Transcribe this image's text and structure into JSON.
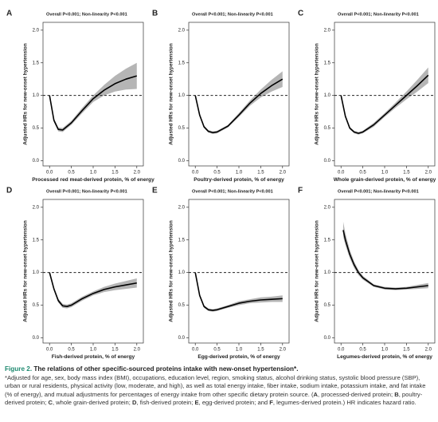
{
  "chart_data": [
    {
      "type": "line",
      "panel": "A",
      "annotation": "Overall P<0.001; Non-linearity P<0.001",
      "ylabel": "Adjusted HRs for new-onset hypertension",
      "xlabel": "Processed red meat-derived protein, % of energy",
      "x": [
        0,
        0.1,
        0.2,
        0.3,
        0.5,
        0.75,
        1,
        1.25,
        1.5,
        1.75,
        2
      ],
      "values": [
        1.0,
        0.62,
        0.48,
        0.47,
        0.58,
        0.77,
        0.95,
        1.08,
        1.18,
        1.25,
        1.3
      ],
      "lower": [
        0.99,
        0.59,
        0.45,
        0.44,
        0.55,
        0.73,
        0.9,
        1.0,
        1.06,
        1.09,
        1.1
      ],
      "upper": [
        1.01,
        0.65,
        0.51,
        0.5,
        0.61,
        0.81,
        1.0,
        1.16,
        1.3,
        1.41,
        1.5
      ],
      "xlim": [
        -0.15,
        2.15
      ],
      "ylim": [
        -0.08,
        2.12
      ],
      "xticks": [
        {
          "value": 0,
          "label": "0.0"
        },
        0.5,
        {
          "value": 1,
          "label": "1.0"
        },
        1.5,
        {
          "value": 2,
          "label": "2.0"
        }
      ],
      "yticks": [
        {
          "value": 0,
          "label": "0.0"
        },
        0.5,
        {
          "value": 1,
          "label": "1.0"
        },
        1.5,
        {
          "value": 2,
          "label": "2.0"
        }
      ],
      "reference_line": 1,
      "color": "#000000",
      "band_color": "#b5b5b5"
    },
    {
      "type": "line",
      "panel": "B",
      "annotation": "Overall P<0.001; Non-linearity P<0.001",
      "ylabel": "Adjusted HRs for new-onset hypertension",
      "xlabel": "Poultry-derived protein, % of energy",
      "x": [
        0,
        0.1,
        0.2,
        0.3,
        0.4,
        0.5,
        0.75,
        1,
        1.25,
        1.5,
        1.75,
        2
      ],
      "values": [
        1,
        0.7,
        0.52,
        0.45,
        0.43,
        0.44,
        0.53,
        0.7,
        0.88,
        1.03,
        1.15,
        1.25
      ],
      "lower": [
        0.99,
        0.68,
        0.5,
        0.43,
        0.41,
        0.42,
        0.51,
        0.67,
        0.84,
        0.97,
        1.06,
        1.13
      ],
      "upper": [
        1.01,
        0.72,
        0.54,
        0.47,
        0.45,
        0.46,
        0.55,
        0.73,
        0.92,
        1.09,
        1.24,
        1.37
      ],
      "xlim": [
        -0.15,
        2.15
      ],
      "ylim": [
        -0.08,
        2.12
      ],
      "xticks": [
        {
          "value": 0,
          "label": "0.0"
        },
        0.5,
        {
          "value": 1,
          "label": "1.0"
        },
        1.5,
        {
          "value": 2,
          "label": "2.0"
        }
      ],
      "yticks": [
        {
          "value": 0,
          "label": "0.0"
        },
        0.5,
        {
          "value": 1,
          "label": "1.0"
        },
        1.5,
        {
          "value": 2,
          "label": "2.0"
        }
      ],
      "reference_line": 1,
      "color": "#000000",
      "band_color": "#b5b5b5"
    },
    {
      "type": "line",
      "panel": "C",
      "annotation": "Overall P<0.001; Non-linearity P<0.001",
      "ylabel": "Adjusted HRs for new-onset hypertension",
      "xlabel": "Whole grain-derived protein, % of energy",
      "x": [
        0,
        0.1,
        0.2,
        0.3,
        0.4,
        0.5,
        0.75,
        1,
        1.25,
        1.5,
        1.75,
        2
      ],
      "values": [
        1,
        0.68,
        0.5,
        0.44,
        0.42,
        0.44,
        0.55,
        0.7,
        0.85,
        1.0,
        1.15,
        1.31
      ],
      "lower": [
        0.99,
        0.66,
        0.48,
        0.42,
        0.4,
        0.42,
        0.52,
        0.67,
        0.81,
        0.94,
        1.06,
        1.19
      ],
      "upper": [
        1.01,
        0.7,
        0.52,
        0.46,
        0.44,
        0.46,
        0.58,
        0.73,
        0.89,
        1.06,
        1.24,
        1.43
      ],
      "xlim": [
        -0.15,
        2.15
      ],
      "ylim": [
        -0.08,
        2.12
      ],
      "xticks": [
        {
          "value": 0,
          "label": "0.0"
        },
        0.5,
        {
          "value": 1,
          "label": "1.0"
        },
        1.5,
        {
          "value": 2,
          "label": "2.0"
        }
      ],
      "yticks": [
        {
          "value": 0,
          "label": "0.0"
        },
        0.5,
        {
          "value": 1,
          "label": "1.0"
        },
        1.5,
        {
          "value": 2,
          "label": "2.0"
        }
      ],
      "reference_line": 1,
      "color": "#000000",
      "band_color": "#b5b5b5"
    },
    {
      "type": "line",
      "panel": "D",
      "annotation": "Overall P<0.001; Non-linearity P<0.001",
      "ylabel": "Adjusted HRs for new-onset hypertension",
      "xlabel": "Fish-derived protein, % of energy",
      "x": [
        0,
        0.1,
        0.2,
        0.3,
        0.4,
        0.5,
        0.75,
        1,
        1.25,
        1.5,
        1.75,
        2
      ],
      "values": [
        1,
        0.75,
        0.57,
        0.49,
        0.48,
        0.5,
        0.6,
        0.68,
        0.74,
        0.78,
        0.81,
        0.84
      ],
      "lower": [
        0.99,
        0.73,
        0.54,
        0.46,
        0.45,
        0.47,
        0.57,
        0.65,
        0.7,
        0.73,
        0.75,
        0.77
      ],
      "upper": [
        1.01,
        0.77,
        0.6,
        0.52,
        0.51,
        0.53,
        0.63,
        0.71,
        0.78,
        0.83,
        0.87,
        0.91
      ],
      "xlim": [
        -0.15,
        2.15
      ],
      "ylim": [
        -0.08,
        2.12
      ],
      "xticks": [
        {
          "value": 0,
          "label": "0.0"
        },
        0.5,
        {
          "value": 1,
          "label": "1.0"
        },
        1.5,
        {
          "value": 2,
          "label": "2.0"
        }
      ],
      "yticks": [
        {
          "value": 0,
          "label": "0.0"
        },
        0.5,
        {
          "value": 1,
          "label": "1.0"
        },
        1.5,
        {
          "value": 2,
          "label": "2.0"
        }
      ],
      "reference_line": 1,
      "color": "#000000",
      "band_color": "#b5b5b5"
    },
    {
      "type": "line",
      "panel": "E",
      "annotation": "Overall P<0.001; Non-linearity P<0.001",
      "ylabel": "Adjusted HRs for new-onset hypertension",
      "xlabel": "Egg-derived protein, % of energy",
      "x": [
        0,
        0.1,
        0.2,
        0.3,
        0.4,
        0.5,
        0.75,
        1,
        1.25,
        1.5,
        1.75,
        2
      ],
      "values": [
        1,
        0.65,
        0.48,
        0.43,
        0.42,
        0.43,
        0.48,
        0.53,
        0.56,
        0.58,
        0.59,
        0.6
      ],
      "lower": [
        0.99,
        0.63,
        0.46,
        0.41,
        0.4,
        0.41,
        0.46,
        0.5,
        0.53,
        0.54,
        0.55,
        0.55
      ],
      "upper": [
        1.01,
        0.67,
        0.5,
        0.45,
        0.44,
        0.45,
        0.5,
        0.56,
        0.59,
        0.62,
        0.63,
        0.65
      ],
      "xlim": [
        -0.15,
        2.15
      ],
      "ylim": [
        -0.08,
        2.12
      ],
      "xticks": [
        {
          "value": 0,
          "label": "0.0"
        },
        0.5,
        {
          "value": 1,
          "label": "1.0"
        },
        1.5,
        {
          "value": 2,
          "label": "2.0"
        }
      ],
      "yticks": [
        {
          "value": 0,
          "label": "0.0"
        },
        0.5,
        {
          "value": 1,
          "label": "1.0"
        },
        1.5,
        {
          "value": 2,
          "label": "2.0"
        }
      ],
      "reference_line": 1,
      "color": "#000000",
      "band_color": "#b5b5b5"
    },
    {
      "type": "line",
      "panel": "F",
      "annotation": "Overall P<0.001; Non-linearity P<0.001",
      "ylabel": "Adjusted HRs for new-onset hypertension",
      "xlabel": "Legumes-derived protein, % of energy",
      "x": [
        0.05,
        0.1,
        0.2,
        0.3,
        0.4,
        0.5,
        0.75,
        1,
        1.25,
        1.5,
        1.75,
        2
      ],
      "values": [
        1.65,
        1.5,
        1.28,
        1.12,
        1.0,
        0.92,
        0.8,
        0.76,
        0.75,
        0.76,
        0.78,
        0.8
      ],
      "lower": [
        1.55,
        1.42,
        1.22,
        1.07,
        0.96,
        0.89,
        0.78,
        0.74,
        0.73,
        0.74,
        0.75,
        0.76
      ],
      "upper": [
        1.78,
        1.6,
        1.35,
        1.17,
        1.04,
        0.95,
        0.82,
        0.78,
        0.77,
        0.78,
        0.81,
        0.84
      ],
      "xlim": [
        -0.15,
        2.15
      ],
      "ylim": [
        -0.08,
        2.12
      ],
      "xticks": [
        {
          "value": 0,
          "label": "0.0"
        },
        0.5,
        {
          "value": 1,
          "label": "1.0"
        },
        1.5,
        {
          "value": 2,
          "label": "2.0"
        }
      ],
      "yticks": [
        {
          "value": 0,
          "label": "0.0"
        },
        0.5,
        {
          "value": 1,
          "label": "1.0"
        },
        1.5,
        {
          "value": 2,
          "label": "2.0"
        }
      ],
      "reference_line": 1,
      "color": "#000000",
      "band_color": "#b5b5b5"
    }
  ],
  "caption": {
    "label": "Figure 2.",
    "title": "The relations of other specific-sourced proteins intake with new-onset hypertension*.",
    "runs": [
      {
        "text": "*Adjusted for age, sex, body mass index (BMI), occupations, education level, region, smoking status, alcohol drinking status, systolic blood pressure (SBP), urban or rural residents, physical activity (low, moderate, and high), as well as total energy intake, fiber intake, sodium intake, potassium intake, and fat intake (% of energy), and mutual adjustments for percentages of energy intake from other specific dietary protein source. (",
        "bold": false
      },
      {
        "text": "A",
        "bold": true
      },
      {
        "text": ", processed-derived protein; ",
        "bold": false
      },
      {
        "text": "B",
        "bold": true
      },
      {
        "text": ", poultry-derived protein; ",
        "bold": false
      },
      {
        "text": "C",
        "bold": true
      },
      {
        "text": ", whole grain-derived protein; ",
        "bold": false
      },
      {
        "text": "D",
        "bold": true
      },
      {
        "text": ", fish-derived protein; ",
        "bold": false
      },
      {
        "text": "E",
        "bold": true
      },
      {
        "text": ", egg-derived protein; and ",
        "bold": false
      },
      {
        "text": "F",
        "bold": true
      },
      {
        "text": ", legumes-derived protein.) HR indicates hazard ratio.",
        "bold": false
      }
    ]
  }
}
